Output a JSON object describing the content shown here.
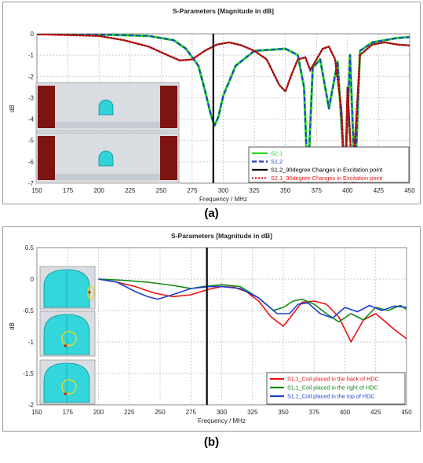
{
  "colors": {
    "green": "#22dd22",
    "blue": "#1f3fd0",
    "black": "#000000",
    "darkred": "#8a1010",
    "red": "#ee1111",
    "darkgreen": "#118811",
    "cyan": "#2fd2d6",
    "grid": "#b8b8b8"
  },
  "chart_data": [
    {
      "type": "line",
      "caption": "(a)",
      "title": "S-Parameters [Magnitude in dB]",
      "xlabel": "Frequency / MHz",
      "ylabel": "dB",
      "xlim": [
        150,
        450
      ],
      "ylim": [
        -7,
        0
      ],
      "xticks": [
        "150",
        "175",
        "200",
        "225",
        "250",
        "275",
        "300",
        "325",
        "350",
        "375",
        "400",
        "425",
        "450"
      ],
      "yticks": [
        "0",
        "-1",
        "-2",
        "-3",
        "-4",
        "-5",
        "-6",
        "-7"
      ],
      "grid": true,
      "legend_position": "bottom-right",
      "marker_x": 292,
      "series": [
        {
          "name": "S2,1",
          "color": "#22dd22",
          "style": "solid",
          "x": [
            150,
            200,
            240,
            260,
            270,
            280,
            285,
            290,
            293,
            296,
            300,
            310,
            325,
            350,
            360,
            365,
            368,
            372,
            378,
            385,
            392,
            398,
            402,
            406,
            410,
            420,
            440,
            450
          ],
          "y": [
            -0.02,
            -0.03,
            -0.1,
            -0.3,
            -0.7,
            -1.5,
            -2.6,
            -3.8,
            -4.3,
            -3.9,
            -2.9,
            -1.5,
            -0.8,
            -0.7,
            -1.0,
            -2.5,
            -7.0,
            -1.6,
            -1.2,
            -3.5,
            -1.3,
            -7.0,
            -1.0,
            -7.0,
            -0.8,
            -0.4,
            -0.2,
            -0.15
          ]
        },
        {
          "name": "S1,2",
          "color": "#1f3fd0",
          "style": "dashed",
          "x": [
            150,
            200,
            240,
            260,
            270,
            280,
            285,
            290,
            293,
            296,
            300,
            310,
            325,
            350,
            360,
            365,
            368,
            372,
            378,
            385,
            392,
            398,
            402,
            406,
            410,
            420,
            440,
            450
          ],
          "y": [
            -0.02,
            -0.03,
            -0.1,
            -0.3,
            -0.7,
            -1.5,
            -2.6,
            -3.8,
            -4.3,
            -3.9,
            -2.9,
            -1.5,
            -0.8,
            -0.7,
            -1.0,
            -2.5,
            -7.0,
            -1.6,
            -1.2,
            -3.5,
            -1.3,
            -7.0,
            -1.0,
            -7.0,
            -0.8,
            -0.4,
            -0.2,
            -0.15
          ]
        },
        {
          "name": "S1,2_90degree Changes in Excitation point",
          "color": "#000000",
          "style": "solid",
          "x": [
            150,
            200,
            220,
            240,
            255,
            265,
            275,
            285,
            295,
            305,
            315,
            325,
            335,
            345,
            350,
            355,
            360,
            366,
            370,
            375,
            380,
            385,
            390,
            395,
            398,
            400,
            404,
            410,
            420,
            430,
            440,
            450
          ],
          "y": [
            -0.02,
            -0.1,
            -0.3,
            -0.6,
            -1.0,
            -1.25,
            -1.2,
            -0.8,
            -0.5,
            -0.4,
            -0.55,
            -0.8,
            -1.2,
            -2.4,
            -2.7,
            -1.9,
            -1.2,
            -1.1,
            -1.7,
            -1.2,
            -0.7,
            -0.6,
            -1.2,
            -3.5,
            -7.0,
            -2.5,
            -7.0,
            -1.0,
            -0.5,
            -0.4,
            -0.5,
            -0.55
          ]
        },
        {
          "name": "S2,1_90degree Changes in Excitation point",
          "color": "#ee1111",
          "style": "dotted",
          "x": [
            150,
            200,
            220,
            240,
            255,
            265,
            275,
            285,
            295,
            305,
            315,
            325,
            335,
            345,
            350,
            355,
            360,
            366,
            370,
            375,
            380,
            385,
            390,
            395,
            398,
            400,
            404,
            410,
            420,
            430,
            440,
            450
          ],
          "y": [
            -0.02,
            -0.1,
            -0.3,
            -0.6,
            -1.0,
            -1.25,
            -1.2,
            -0.8,
            -0.5,
            -0.4,
            -0.55,
            -0.8,
            -1.2,
            -2.4,
            -2.7,
            -1.9,
            -1.2,
            -1.1,
            -1.7,
            -1.2,
            -0.7,
            -0.6,
            -1.2,
            -3.5,
            -7.0,
            -2.5,
            -7.0,
            -1.0,
            -0.5,
            -0.4,
            -0.5,
            -0.55
          ]
        }
      ]
    },
    {
      "type": "line",
      "caption": "(b)",
      "title": "S-Parameters [Magnitude in dB]",
      "xlabel": "Frequency / MHz",
      "ylabel": "dB",
      "xlim": [
        150,
        450
      ],
      "ylim": [
        -2,
        0.5
      ],
      "xticks": [
        "150",
        "175",
        "200",
        "225",
        "250",
        "275",
        "300",
        "325",
        "350",
        "375",
        "400",
        "425",
        "450"
      ],
      "yticks": [
        "0.5",
        "0",
        "-0.5",
        "-1",
        "-1.5",
        "-2"
      ],
      "grid": true,
      "legend_position": "bottom-right",
      "marker_x": 288,
      "series": [
        {
          "name": "S1,1_Coil placed in the back of HDC",
          "color": "#ee1111",
          "x": [
            200,
            215,
            230,
            245,
            260,
            275,
            290,
            300,
            310,
            320,
            330,
            340,
            350,
            358,
            365,
            375,
            385,
            395,
            405,
            415,
            425,
            440,
            450
          ],
          "y": [
            0,
            -0.05,
            -0.12,
            -0.22,
            -0.28,
            -0.25,
            -0.16,
            -0.12,
            -0.13,
            -0.2,
            -0.35,
            -0.6,
            -0.75,
            -0.55,
            -0.37,
            -0.35,
            -0.4,
            -0.6,
            -1.0,
            -0.65,
            -0.55,
            -0.8,
            -0.95
          ]
        },
        {
          "name": "S1,1_Coil placed in the right of HDC",
          "color": "#118811",
          "x": [
            200,
            220,
            240,
            260,
            275,
            285,
            300,
            315,
            330,
            342,
            350,
            358,
            365,
            375,
            385,
            395,
            405,
            415,
            425,
            435,
            445,
            450
          ],
          "y": [
            0,
            -0.02,
            -0.05,
            -0.1,
            -0.15,
            -0.12,
            -0.09,
            -0.12,
            -0.3,
            -0.5,
            -0.45,
            -0.35,
            -0.32,
            -0.4,
            -0.55,
            -0.68,
            -0.55,
            -0.65,
            -0.45,
            -0.5,
            -0.42,
            -0.48
          ]
        },
        {
          "name": "S1,1_Coil placed in the top of HDC",
          "color": "#1f3fd0",
          "x": [
            200,
            215,
            230,
            240,
            248,
            260,
            275,
            290,
            300,
            315,
            330,
            345,
            355,
            362,
            370,
            380,
            390,
            400,
            410,
            420,
            430,
            440,
            450
          ],
          "y": [
            0,
            -0.05,
            -0.2,
            -0.28,
            -0.32,
            -0.25,
            -0.15,
            -0.12,
            -0.12,
            -0.15,
            -0.3,
            -0.55,
            -0.55,
            -0.4,
            -0.38,
            -0.55,
            -0.62,
            -0.45,
            -0.52,
            -0.42,
            -0.5,
            -0.43,
            -0.45
          ]
        }
      ]
    }
  ]
}
